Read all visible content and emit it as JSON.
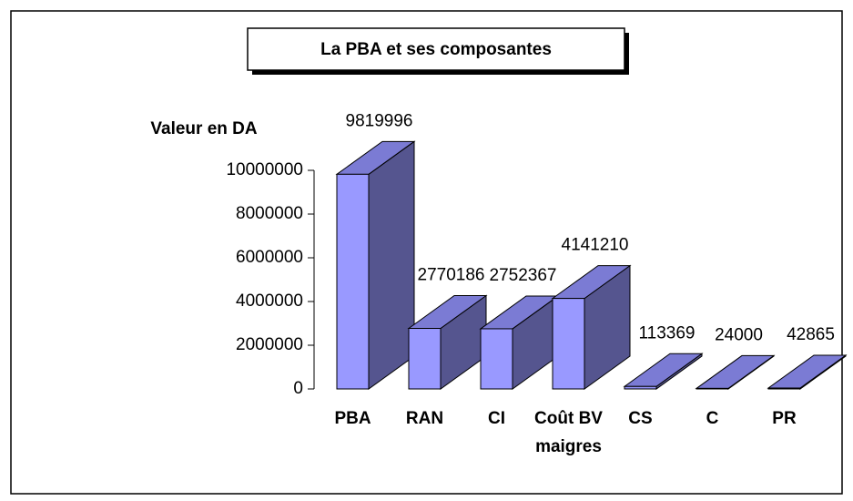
{
  "chart_data": {
    "type": "bar3d",
    "title": "La PBA et ses composantes",
    "y_label": "Valeur en DA",
    "categories": [
      "PBA",
      "RAN",
      "CI",
      "Coût BV maigres",
      "CS",
      "C",
      "PR"
    ],
    "values": [
      9819996,
      2770186,
      2752367,
      4141210,
      113369,
      24000,
      42865
    ],
    "color": "#9999ff",
    "ylim": [
      0,
      10000000
    ],
    "yticks": [
      0,
      2000000,
      4000000,
      6000000,
      8000000,
      10000000
    ]
  }
}
